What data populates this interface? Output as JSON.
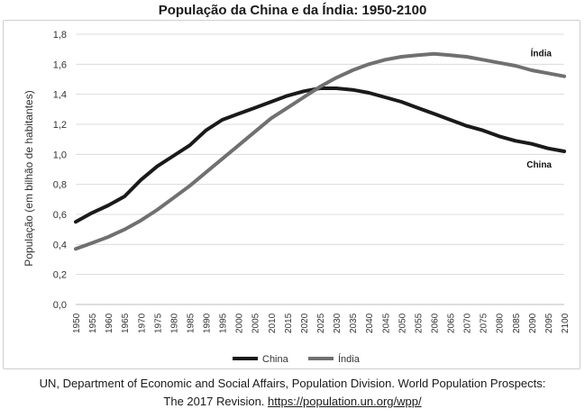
{
  "chart_data": {
    "type": "line",
    "title": "População da China e da Índia: 1950-2100",
    "xlabel": "",
    "ylabel": "População (em bilhão de habitantes)",
    "ylim": [
      0.0,
      1.8
    ],
    "yticks": [
      "0,0",
      "0,2",
      "0,4",
      "0,6",
      "0,8",
      "1,0",
      "1,2",
      "1,4",
      "1,6",
      "1,8"
    ],
    "x": [
      1950,
      1955,
      1960,
      1965,
      1970,
      1975,
      1980,
      1985,
      1990,
      1995,
      2000,
      2005,
      2010,
      2015,
      2020,
      2025,
      2030,
      2035,
      2040,
      2045,
      2050,
      2055,
      2060,
      2065,
      2070,
      2075,
      2080,
      2085,
      2090,
      2095,
      2100
    ],
    "grid": true,
    "legend": "bottom",
    "series": [
      {
        "name": "China",
        "color": "#1a1a1a",
        "values": [
          0.55,
          0.61,
          0.66,
          0.72,
          0.83,
          0.92,
          0.99,
          1.06,
          1.16,
          1.23,
          1.27,
          1.31,
          1.35,
          1.39,
          1.42,
          1.44,
          1.44,
          1.43,
          1.41,
          1.38,
          1.35,
          1.31,
          1.27,
          1.23,
          1.19,
          1.16,
          1.12,
          1.09,
          1.07,
          1.04,
          1.02
        ]
      },
      {
        "name": "Índia",
        "color": "#707070",
        "values": [
          0.37,
          0.41,
          0.45,
          0.5,
          0.56,
          0.63,
          0.71,
          0.79,
          0.88,
          0.97,
          1.06,
          1.15,
          1.24,
          1.31,
          1.38,
          1.45,
          1.51,
          1.56,
          1.6,
          1.63,
          1.65,
          1.66,
          1.67,
          1.66,
          1.65,
          1.63,
          1.61,
          1.59,
          1.56,
          1.54,
          1.52
        ]
      }
    ],
    "series_labels": [
      {
        "name": "Índia",
        "text": "Índia"
      },
      {
        "name": "China",
        "text": "China"
      }
    ]
  },
  "caption": {
    "line1": "UN, Department of Economic and Social Affairs, Population Division. World Population Prospects:",
    "line2_text": "The 2017 Revision. ",
    "line2_link": "https://population.un.org/wpp/"
  }
}
